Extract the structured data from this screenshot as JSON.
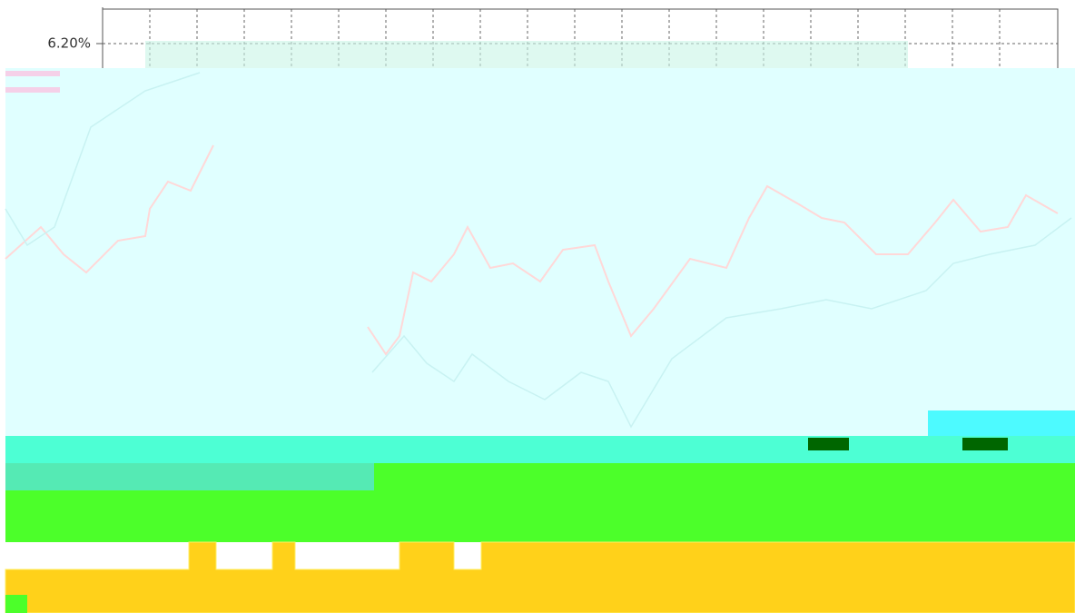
{
  "axis": {
    "tick_label": "6.20%"
  }
}
